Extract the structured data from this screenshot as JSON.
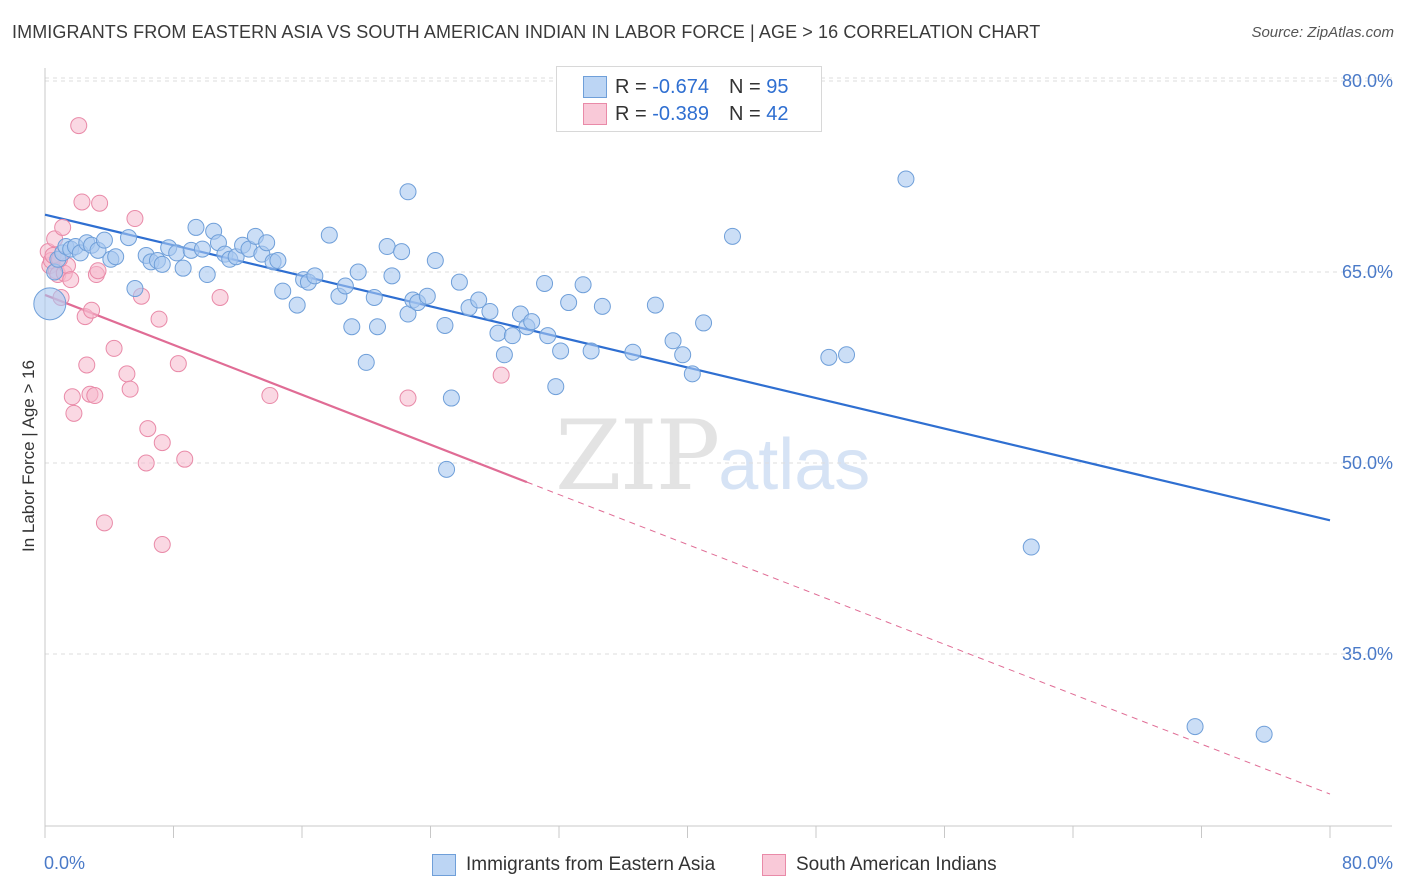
{
  "title": "IMMIGRANTS FROM EASTERN ASIA VS SOUTH AMERICAN INDIAN IN LABOR FORCE | AGE > 16 CORRELATION CHART",
  "source": "Source: ZipAtlas.com",
  "watermark": {
    "zip": "ZIP",
    "atlas": "atlas"
  },
  "legend": {
    "r_label": "R = ",
    "n_label": "N = ",
    "rows": [
      {
        "r": "-0.674",
        "n": "95"
      },
      {
        "r": "-0.389",
        "n": "42"
      }
    ]
  },
  "colors": {
    "blue_fill": "#a9c8f0",
    "blue_stroke": "#6f9fd9",
    "blue_line": "#2f6fd1",
    "pink_fill": "#f6b8cc",
    "pink_stroke": "#e98aa8",
    "pink_line": "#e06c95"
  },
  "chart_data": {
    "type": "scatter",
    "title": "IMMIGRANTS FROM EASTERN ASIA VS SOUTH AMERICAN INDIAN IN LABOR FORCE | AGE > 16 CORRELATION CHART",
    "xlabel": "",
    "ylabel": "In Labor Force | Age > 16",
    "xlim": [
      0,
      80
    ],
    "ylim": [
      20,
      82
    ],
    "x_tick_labels": [
      "0.0%",
      "80.0%"
    ],
    "y_ticks": [
      35,
      50,
      65,
      80
    ],
    "y_tick_labels": [
      "35.0%",
      "50.0%",
      "65.0%",
      "80.0%"
    ],
    "grid": true,
    "legend_position": "bottom",
    "series": [
      {
        "name": "Immigrants from Eastern Asia",
        "color": "#a9c8f0",
        "trend": {
          "x": [
            0,
            80
          ],
          "y": [
            69.5,
            45.5
          ]
        },
        "points": [
          [
            0.3,
            62.5
          ],
          [
            0.6,
            65.0
          ],
          [
            0.8,
            66.0
          ],
          [
            1.1,
            66.5
          ],
          [
            1.3,
            67.0
          ],
          [
            1.6,
            66.8
          ],
          [
            1.9,
            67.0
          ],
          [
            2.2,
            66.5
          ],
          [
            2.6,
            67.3
          ],
          [
            2.9,
            67.1
          ],
          [
            3.3,
            66.7
          ],
          [
            3.7,
            67.5
          ],
          [
            4.1,
            66.0
          ],
          [
            4.4,
            66.2
          ],
          [
            5.2,
            67.7
          ],
          [
            5.6,
            63.7
          ],
          [
            6.3,
            66.3
          ],
          [
            6.6,
            65.8
          ],
          [
            7.0,
            65.9
          ],
          [
            7.3,
            65.6
          ],
          [
            7.7,
            66.9
          ],
          [
            8.2,
            66.5
          ],
          [
            8.6,
            65.3
          ],
          [
            9.1,
            66.7
          ],
          [
            9.4,
            68.5
          ],
          [
            9.8,
            66.8
          ],
          [
            10.1,
            64.8
          ],
          [
            10.5,
            68.2
          ],
          [
            10.8,
            67.3
          ],
          [
            11.2,
            66.4
          ],
          [
            11.5,
            66.0
          ],
          [
            11.9,
            66.2
          ],
          [
            12.3,
            67.1
          ],
          [
            12.7,
            66.8
          ],
          [
            13.1,
            67.8
          ],
          [
            13.5,
            66.4
          ],
          [
            13.8,
            67.3
          ],
          [
            14.2,
            65.8
          ],
          [
            14.5,
            65.9
          ],
          [
            14.8,
            63.5
          ],
          [
            15.7,
            62.4
          ],
          [
            16.1,
            64.4
          ],
          [
            16.4,
            64.2
          ],
          [
            16.8,
            64.7
          ],
          [
            17.7,
            67.9
          ],
          [
            18.3,
            63.1
          ],
          [
            18.7,
            63.9
          ],
          [
            19.1,
            60.7
          ],
          [
            19.5,
            65.0
          ],
          [
            20.0,
            57.9
          ],
          [
            20.5,
            63.0
          ],
          [
            20.7,
            60.7
          ],
          [
            21.3,
            67.0
          ],
          [
            21.6,
            64.7
          ],
          [
            22.2,
            66.6
          ],
          [
            22.6,
            61.7
          ],
          [
            22.9,
            62.8
          ],
          [
            23.2,
            62.6
          ],
          [
            23.8,
            63.1
          ],
          [
            24.3,
            65.9
          ],
          [
            24.9,
            60.8
          ],
          [
            25.3,
            55.1
          ],
          [
            25.8,
            64.2
          ],
          [
            26.4,
            62.2
          ],
          [
            27.0,
            62.8
          ],
          [
            27.7,
            61.9
          ],
          [
            28.2,
            60.2
          ],
          [
            28.6,
            58.5
          ],
          [
            29.1,
            60.0
          ],
          [
            29.6,
            61.7
          ],
          [
            30.0,
            60.7
          ],
          [
            30.3,
            61.1
          ],
          [
            31.1,
            64.1
          ],
          [
            31.3,
            60.0
          ],
          [
            32.1,
            58.8
          ],
          [
            32.6,
            62.6
          ],
          [
            33.5,
            64.0
          ],
          [
            34.0,
            58.8
          ],
          [
            34.7,
            62.3
          ],
          [
            36.6,
            58.7
          ],
          [
            38.0,
            62.4
          ],
          [
            39.1,
            59.6
          ],
          [
            39.7,
            58.5
          ],
          [
            40.3,
            57.0
          ],
          [
            41.0,
            61.0
          ],
          [
            42.8,
            67.8
          ],
          [
            48.8,
            58.3
          ],
          [
            49.9,
            58.5
          ],
          [
            25.0,
            49.5
          ],
          [
            53.6,
            72.3
          ],
          [
            61.4,
            43.4
          ],
          [
            71.6,
            29.3
          ],
          [
            75.9,
            28.7
          ],
          [
            22.6,
            71.3
          ],
          [
            31.8,
            56.0
          ]
        ]
      },
      {
        "name": "South American Indians",
        "color": "#f6b8cc",
        "trend": {
          "x": [
            0,
            30
          ],
          "y": [
            63.2,
            48.5
          ]
        },
        "trend_extension": {
          "x": [
            30,
            80
          ],
          "y": [
            48.5,
            24.0
          ]
        },
        "points": [
          [
            0.2,
            66.6
          ],
          [
            0.3,
            65.5
          ],
          [
            0.4,
            65.9
          ],
          [
            0.5,
            66.3
          ],
          [
            0.6,
            67.6
          ],
          [
            0.7,
            65.1
          ],
          [
            0.8,
            64.8
          ],
          [
            1.1,
            68.5
          ],
          [
            1.2,
            64.9
          ],
          [
            1.4,
            65.5
          ],
          [
            1.6,
            64.4
          ],
          [
            1.7,
            55.2
          ],
          [
            1.8,
            53.9
          ],
          [
            2.1,
            76.5
          ],
          [
            2.3,
            70.5
          ],
          [
            2.5,
            61.5
          ],
          [
            2.6,
            57.7
          ],
          [
            2.8,
            55.4
          ],
          [
            2.9,
            62.0
          ],
          [
            3.1,
            55.3
          ],
          [
            3.2,
            64.8
          ],
          [
            3.3,
            65.1
          ],
          [
            3.4,
            70.4
          ],
          [
            3.7,
            45.3
          ],
          [
            4.3,
            59.0
          ],
          [
            5.1,
            57.0
          ],
          [
            5.3,
            55.8
          ],
          [
            5.6,
            69.2
          ],
          [
            6.0,
            63.1
          ],
          [
            6.3,
            50.0
          ],
          [
            6.4,
            52.7
          ],
          [
            7.1,
            61.3
          ],
          [
            7.3,
            51.6
          ],
          [
            7.3,
            43.6
          ],
          [
            8.3,
            57.8
          ],
          [
            8.7,
            50.3
          ],
          [
            10.9,
            63.0
          ],
          [
            14.0,
            55.3
          ],
          [
            22.6,
            55.1
          ],
          [
            28.4,
            56.9
          ],
          [
            1.0,
            63.0
          ],
          [
            0.9,
            66.0
          ]
        ]
      }
    ]
  },
  "bottom_legend": [
    "Immigrants from Eastern Asia",
    "South American Indians"
  ]
}
